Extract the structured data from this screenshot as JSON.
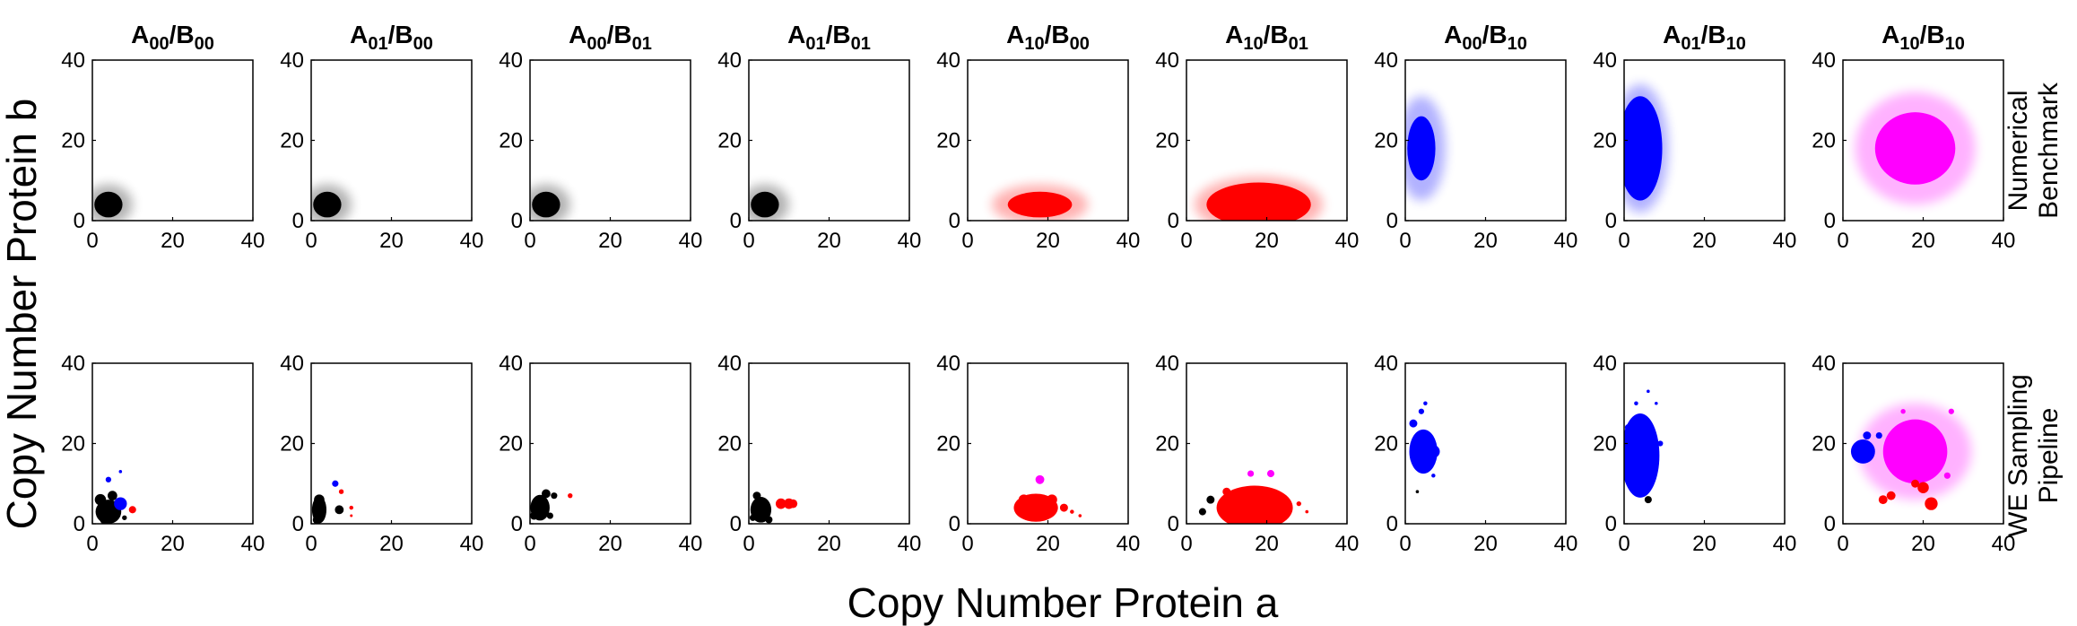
{
  "figure": {
    "xlabel": "Copy Number Protein a",
    "ylabel": "Copy Number Protein b",
    "row_labels": [
      [
        "Numerical",
        "Benchmark"
      ],
      [
        "WE Sampling",
        "Pipeline"
      ]
    ]
  },
  "colors": {
    "black": "#000000",
    "red": "#ff0000",
    "blue": "#0000ff",
    "magenta": "#ff00ff"
  },
  "chart_data": {
    "type": "scatter",
    "xlim": [
      0,
      40
    ],
    "ylim": [
      0,
      40
    ],
    "xticks": [
      "0",
      "20",
      "40"
    ],
    "yticks": [
      "0",
      "20",
      "40"
    ],
    "grid": false,
    "columns": [
      {
        "A": "A",
        "A_sub": "00",
        "B": "B",
        "B_sub": "00"
      },
      {
        "A": "A",
        "A_sub": "01",
        "B": "B",
        "B_sub": "00"
      },
      {
        "A": "A",
        "A_sub": "00",
        "B": "B",
        "B_sub": "01"
      },
      {
        "A": "A",
        "A_sub": "01",
        "B": "B",
        "B_sub": "01"
      },
      {
        "A": "A",
        "A_sub": "10",
        "B": "B",
        "B_sub": "00"
      },
      {
        "A": "A",
        "A_sub": "10",
        "B": "B",
        "B_sub": "01"
      },
      {
        "A": "A",
        "A_sub": "00",
        "B": "B",
        "B_sub": "10"
      },
      {
        "A": "A",
        "A_sub": "01",
        "B": "B",
        "B_sub": "10"
      },
      {
        "A": "A",
        "A_sub": "10",
        "B": "B",
        "B_sub": "10"
      }
    ],
    "benchmark": [
      {
        "blobs": [
          {
            "color": "black",
            "cx": 4,
            "cy": 4,
            "rx": 3.5,
            "ry": 3.2,
            "fuzz_rx": 6,
            "fuzz_ry": 5
          }
        ]
      },
      {
        "blobs": [
          {
            "color": "black",
            "cx": 4,
            "cy": 4,
            "rx": 3.5,
            "ry": 3.2,
            "fuzz_rx": 6,
            "fuzz_ry": 5
          }
        ]
      },
      {
        "blobs": [
          {
            "color": "black",
            "cx": 4,
            "cy": 4,
            "rx": 3.5,
            "ry": 3.2,
            "fuzz_rx": 6,
            "fuzz_ry": 5
          }
        ]
      },
      {
        "blobs": [
          {
            "color": "black",
            "cx": 4,
            "cy": 4,
            "rx": 3.5,
            "ry": 3.2,
            "fuzz_rx": 6,
            "fuzz_ry": 5
          }
        ]
      },
      {
        "blobs": [
          {
            "color": "red",
            "cx": 18,
            "cy": 4,
            "rx": 8,
            "ry": 3.2,
            "fuzz_rx": 12,
            "fuzz_ry": 5
          }
        ]
      },
      {
        "blobs": [
          {
            "color": "red",
            "cx": 18,
            "cy": 4,
            "rx": 13,
            "ry": 5.5,
            "fuzz_rx": 16,
            "fuzz_ry": 7
          }
        ]
      },
      {
        "blobs": [
          {
            "color": "blue",
            "cx": 4,
            "cy": 18,
            "rx": 3.5,
            "ry": 8,
            "fuzz_rx": 6,
            "fuzz_ry": 13
          }
        ]
      },
      {
        "blobs": [
          {
            "color": "blue",
            "cx": 4,
            "cy": 18,
            "rx": 5.5,
            "ry": 13,
            "fuzz_rx": 7,
            "fuzz_ry": 16
          }
        ]
      },
      {
        "blobs": [
          {
            "color": "magenta",
            "cx": 18,
            "cy": 18,
            "rx": 10,
            "ry": 9,
            "fuzz_rx": 15,
            "fuzz_ry": 14
          }
        ]
      }
    ],
    "sampling": [
      {
        "blobs": [
          {
            "color": "black",
            "cx": 4,
            "cy": 3,
            "rx": 3.2,
            "ry": 3
          }
        ],
        "points": [
          {
            "x": 2,
            "y": 6,
            "r": 1.4,
            "color": "black"
          },
          {
            "x": 5,
            "y": 7,
            "r": 1.2,
            "color": "black"
          },
          {
            "x": 7,
            "y": 5,
            "r": 1.6,
            "color": "blue"
          },
          {
            "x": 10,
            "y": 3.5,
            "r": 0.9,
            "color": "red"
          },
          {
            "x": 4,
            "y": 11,
            "r": 0.7,
            "color": "blue"
          },
          {
            "x": 7,
            "y": 13,
            "r": 0.4,
            "color": "blue"
          },
          {
            "x": 8,
            "y": 1.5,
            "r": 0.6,
            "color": "black"
          },
          {
            "x": 3,
            "y": 1,
            "r": 1.1,
            "color": "black"
          }
        ]
      },
      {
        "blobs": [
          {
            "color": "black",
            "cx": 2,
            "cy": 3.5,
            "rx": 1.8,
            "ry": 3.4
          }
        ],
        "points": [
          {
            "x": 2,
            "y": 6,
            "r": 1.3,
            "color": "black"
          },
          {
            "x": 7,
            "y": 3.5,
            "r": 1.1,
            "color": "black"
          },
          {
            "x": 7.5,
            "y": 8,
            "r": 0.6,
            "color": "red"
          },
          {
            "x": 6,
            "y": 10,
            "r": 0.8,
            "color": "blue"
          },
          {
            "x": 10,
            "y": 4,
            "r": 0.5,
            "color": "red"
          },
          {
            "x": 10,
            "y": 2,
            "r": 0.3,
            "color": "red"
          },
          {
            "x": 1.5,
            "y": 1,
            "r": 1.1,
            "color": "black"
          }
        ]
      },
      {
        "blobs": [
          {
            "color": "black",
            "cx": 2.5,
            "cy": 4,
            "rx": 2.4,
            "ry": 3.2
          }
        ],
        "points": [
          {
            "x": 4,
            "y": 7.5,
            "r": 1.1,
            "color": "black"
          },
          {
            "x": 6,
            "y": 7,
            "r": 0.8,
            "color": "black"
          },
          {
            "x": 10,
            "y": 7,
            "r": 0.6,
            "color": "red"
          },
          {
            "x": 1,
            "y": 2,
            "r": 1.0,
            "color": "black"
          },
          {
            "x": 5,
            "y": 2,
            "r": 0.8,
            "color": "black"
          }
        ]
      },
      {
        "blobs": [
          {
            "color": "black",
            "cx": 3,
            "cy": 3.5,
            "rx": 2.6,
            "ry": 3.2
          }
        ],
        "points": [
          {
            "x": 8,
            "y": 5,
            "r": 1.3,
            "color": "red"
          },
          {
            "x": 10,
            "y": 5,
            "r": 1.3,
            "color": "red"
          },
          {
            "x": 11,
            "y": 5,
            "r": 1.1,
            "color": "red"
          },
          {
            "x": 2,
            "y": 7,
            "r": 1.0,
            "color": "black"
          },
          {
            "x": 5,
            "y": 1,
            "r": 0.9,
            "color": "black"
          },
          {
            "x": 1,
            "y": 1.5,
            "r": 0.8,
            "color": "black"
          }
        ]
      },
      {
        "blobs": [
          {
            "color": "red",
            "cx": 17,
            "cy": 4,
            "rx": 5.5,
            "ry": 3.5
          }
        ],
        "points": [
          {
            "x": 18,
            "y": 11,
            "r": 1.1,
            "color": "magenta"
          },
          {
            "x": 14,
            "y": 6,
            "r": 1.3,
            "color": "red"
          },
          {
            "x": 21,
            "y": 6,
            "r": 1.3,
            "color": "red"
          },
          {
            "x": 24,
            "y": 4,
            "r": 1.0,
            "color": "red"
          },
          {
            "x": 26,
            "y": 3,
            "r": 0.5,
            "color": "red"
          },
          {
            "x": 28,
            "y": 2,
            "r": 0.4,
            "color": "red"
          }
        ]
      },
      {
        "blobs": [
          {
            "color": "red",
            "cx": 17,
            "cy": 4,
            "rx": 9.5,
            "ry": 5.5
          }
        ],
        "points": [
          {
            "x": 16,
            "y": 12.5,
            "r": 0.8,
            "color": "magenta"
          },
          {
            "x": 21,
            "y": 12.5,
            "r": 0.9,
            "color": "magenta"
          },
          {
            "x": 6,
            "y": 6,
            "r": 1.0,
            "color": "black"
          },
          {
            "x": 4,
            "y": 3,
            "r": 0.9,
            "color": "black"
          },
          {
            "x": 28,
            "y": 5,
            "r": 0.6,
            "color": "red"
          },
          {
            "x": 30,
            "y": 3,
            "r": 0.4,
            "color": "red"
          },
          {
            "x": 10,
            "y": 8,
            "r": 1.0,
            "color": "red"
          }
        ]
      },
      {
        "blobs": [
          {
            "color": "blue",
            "cx": 4.5,
            "cy": 18,
            "rx": 3.5,
            "ry": 5.5
          }
        ],
        "points": [
          {
            "x": 7,
            "y": 18,
            "r": 1.6,
            "color": "blue"
          },
          {
            "x": 2,
            "y": 25,
            "r": 1.0,
            "color": "blue"
          },
          {
            "x": 4,
            "y": 28,
            "r": 0.7,
            "color": "blue"
          },
          {
            "x": 5,
            "y": 30,
            "r": 0.5,
            "color": "blue"
          },
          {
            "x": 7,
            "y": 12,
            "r": 0.5,
            "color": "blue"
          },
          {
            "x": 3,
            "y": 8,
            "r": 0.4,
            "color": "black"
          }
        ]
      },
      {
        "blobs": [
          {
            "color": "blue",
            "cx": 4,
            "cy": 17,
            "rx": 4.8,
            "ry": 10.5
          }
        ],
        "points": [
          {
            "x": 6,
            "y": 6,
            "r": 0.9,
            "color": "black"
          },
          {
            "x": 3,
            "y": 30,
            "r": 0.5,
            "color": "blue"
          },
          {
            "x": 6,
            "y": 33,
            "r": 0.4,
            "color": "blue"
          },
          {
            "x": 8,
            "y": 30,
            "r": 0.4,
            "color": "blue"
          },
          {
            "x": 9,
            "y": 20,
            "r": 0.7,
            "color": "blue"
          },
          {
            "x": 1,
            "y": 24,
            "r": 0.8,
            "color": "blue"
          }
        ]
      },
      {
        "blobs": [
          {
            "color": "magenta",
            "cx": 18,
            "cy": 18,
            "rx": 8,
            "ry": 8,
            "fuzz_rx": 14,
            "fuzz_ry": 12
          },
          {
            "color": "blue",
            "cx": 5,
            "cy": 18,
            "rx": 3,
            "ry": 3
          }
        ],
        "points": [
          {
            "x": 6,
            "y": 22,
            "r": 1.0,
            "color": "blue"
          },
          {
            "x": 9,
            "y": 22,
            "r": 0.8,
            "color": "blue"
          },
          {
            "x": 10,
            "y": 6,
            "r": 1.1,
            "color": "red"
          },
          {
            "x": 12,
            "y": 7,
            "r": 1.1,
            "color": "red"
          },
          {
            "x": 18,
            "y": 10,
            "r": 1.0,
            "color": "red"
          },
          {
            "x": 20,
            "y": 9,
            "r": 1.4,
            "color": "red"
          },
          {
            "x": 22,
            "y": 5,
            "r": 1.6,
            "color": "red"
          },
          {
            "x": 26,
            "y": 12,
            "r": 0.8,
            "color": "magenta"
          },
          {
            "x": 27,
            "y": 28,
            "r": 0.7,
            "color": "magenta"
          },
          {
            "x": 15,
            "y": 28,
            "r": 0.6,
            "color": "magenta"
          }
        ]
      }
    ]
  }
}
